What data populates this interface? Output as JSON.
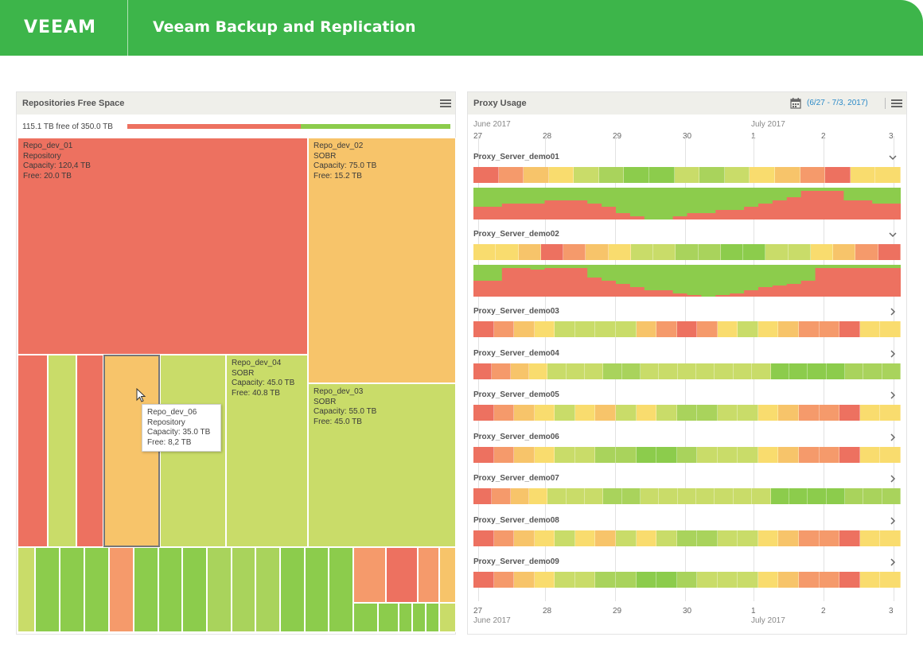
{
  "header": {
    "logo": "VEEAM",
    "title": "Veeam Backup and Replication",
    "bg": "#3db54a"
  },
  "colors": {
    "red": "#ed7160",
    "orange": "#f59a6b",
    "amber": "#f7c46a",
    "yellow": "#f9dc6e",
    "lime": "#c9dc69",
    "lgreen": "#a9d35c",
    "green": "#8ccc4c"
  },
  "repositories": {
    "title": "Repositories Free Space",
    "menu_icon": "hamburger-menu-icon",
    "summary": "115.1 TB free of 350.0 TB",
    "free_tb": 115.1,
    "total_tb": 350.0,
    "tiles": [
      {
        "lines": [
          "Repo_dev_01",
          "Repository",
          "Capacity: 120,4 TB",
          "Free: 20.0 TB"
        ]
      },
      {
        "lines": [
          "Repo_dev_02",
          "SOBR",
          "Capacity: 75.0 TB",
          "Free: 15.2 TB"
        ]
      },
      {
        "lines": [
          "Repo_dev_04",
          "SOBR",
          "Capacity: 45.0 TB",
          "Free: 40.8 TB"
        ]
      },
      {
        "lines": [
          "Repo_dev_03",
          "SOBR",
          "Capacity: 55.0 TB",
          "Free: 45.0 TB"
        ]
      }
    ],
    "tooltip": {
      "lines": [
        "Repo_dev_06",
        "Repository",
        "Capacity: 35.0 TB",
        "Free: 8,2 TB"
      ]
    }
  },
  "proxy": {
    "title": "Proxy Usage",
    "calendar_icon": "calendar-icon",
    "range": "(6/27 - 7/3, 2017)",
    "menu_icon": "hamburger-menu-icon",
    "month_left": "June 2017",
    "month_right": "July 2017",
    "days": [
      "27",
      "28",
      "29",
      "30",
      "1",
      "2",
      "3"
    ],
    "servers": [
      {
        "name": "Proxy_Server_demo01",
        "expanded": true,
        "cells": [
          "red",
          "orange",
          "amber",
          "yellow",
          "lime",
          "lgreen",
          "green",
          "green",
          "lime",
          "lgreen",
          "lime",
          "yellow",
          "amber",
          "orange",
          "red",
          "yellow",
          "yellow"
        ],
        "usage": [
          0.4,
          0.4,
          0.5,
          0.5,
          0.5,
          0.6,
          0.6,
          0.6,
          0.5,
          0.4,
          0.2,
          0.1,
          0.0,
          0.0,
          0.1,
          0.2,
          0.2,
          0.3,
          0.3,
          0.4,
          0.5,
          0.6,
          0.7,
          0.9,
          0.9,
          0.9,
          0.6,
          0.6,
          0.5,
          0.5
        ]
      },
      {
        "name": "Proxy_Server_demo02",
        "expanded": true,
        "cells": [
          "yellow",
          "yellow",
          "amber",
          "red",
          "orange",
          "amber",
          "yellow",
          "lime",
          "lime",
          "lgreen",
          "lgreen",
          "green",
          "green",
          "lime",
          "lime",
          "yellow",
          "amber",
          "orange",
          "red"
        ],
        "usage": [
          0.5,
          0.5,
          0.9,
          0.9,
          0.85,
          0.9,
          0.9,
          0.9,
          0.6,
          0.5,
          0.4,
          0.3,
          0.2,
          0.2,
          0.1,
          0.05,
          0.0,
          0.05,
          0.1,
          0.2,
          0.3,
          0.35,
          0.4,
          0.5,
          0.9,
          0.9,
          0.9,
          0.9,
          0.9,
          0.9
        ]
      },
      {
        "name": "Proxy_Server_demo03",
        "expanded": false,
        "cells": [
          "red",
          "orange",
          "amber",
          "yellow",
          "lime",
          "lime",
          "lime",
          "lime",
          "amber",
          "orange",
          "red",
          "orange",
          "yellow",
          "lime",
          "yellow",
          "amber",
          "orange",
          "orange",
          "red",
          "yellow",
          "yellow"
        ]
      },
      {
        "name": "Proxy_Server_demo04",
        "expanded": false,
        "cells": [
          "red",
          "orange",
          "amber",
          "yellow",
          "lime",
          "lime",
          "lime",
          "lgreen",
          "lgreen",
          "lime",
          "lime",
          "lime",
          "lime",
          "lime",
          "lime",
          "lime",
          "green",
          "green",
          "green",
          "green",
          "lgreen",
          "lgreen",
          "lgreen"
        ]
      },
      {
        "name": "Proxy_Server_demo05",
        "expanded": false,
        "cells": [
          "red",
          "orange",
          "amber",
          "yellow",
          "lime",
          "yellow",
          "amber",
          "lime",
          "yellow",
          "lime",
          "lgreen",
          "lgreen",
          "lime",
          "lime",
          "yellow",
          "amber",
          "orange",
          "orange",
          "red",
          "yellow",
          "yellow"
        ]
      },
      {
        "name": "Proxy_Server_demo06",
        "expanded": false,
        "cells": [
          "red",
          "orange",
          "amber",
          "yellow",
          "lime",
          "lime",
          "lgreen",
          "lgreen",
          "green",
          "green",
          "lgreen",
          "lime",
          "lime",
          "lime",
          "yellow",
          "amber",
          "orange",
          "orange",
          "red",
          "yellow",
          "yellow"
        ]
      },
      {
        "name": "Proxy_Server_demo07",
        "expanded": false,
        "cells": [
          "red",
          "orange",
          "amber",
          "yellow",
          "lime",
          "lime",
          "lime",
          "lgreen",
          "lgreen",
          "lime",
          "lime",
          "lime",
          "lime",
          "lime",
          "lime",
          "lime",
          "green",
          "green",
          "green",
          "green",
          "lgreen",
          "lgreen",
          "lgreen"
        ]
      },
      {
        "name": "Proxy_Server_demo08",
        "expanded": false,
        "cells": [
          "red",
          "orange",
          "amber",
          "yellow",
          "lime",
          "yellow",
          "amber",
          "lime",
          "yellow",
          "lime",
          "lgreen",
          "lgreen",
          "lime",
          "lime",
          "yellow",
          "amber",
          "orange",
          "orange",
          "red",
          "yellow",
          "yellow"
        ]
      },
      {
        "name": "Proxy_Server_demo09",
        "expanded": false,
        "cells": [
          "red",
          "orange",
          "amber",
          "yellow",
          "lime",
          "lime",
          "lgreen",
          "lgreen",
          "green",
          "green",
          "lgreen",
          "lime",
          "lime",
          "lime",
          "yellow",
          "amber",
          "orange",
          "orange",
          "red",
          "yellow",
          "yellow"
        ]
      }
    ]
  }
}
